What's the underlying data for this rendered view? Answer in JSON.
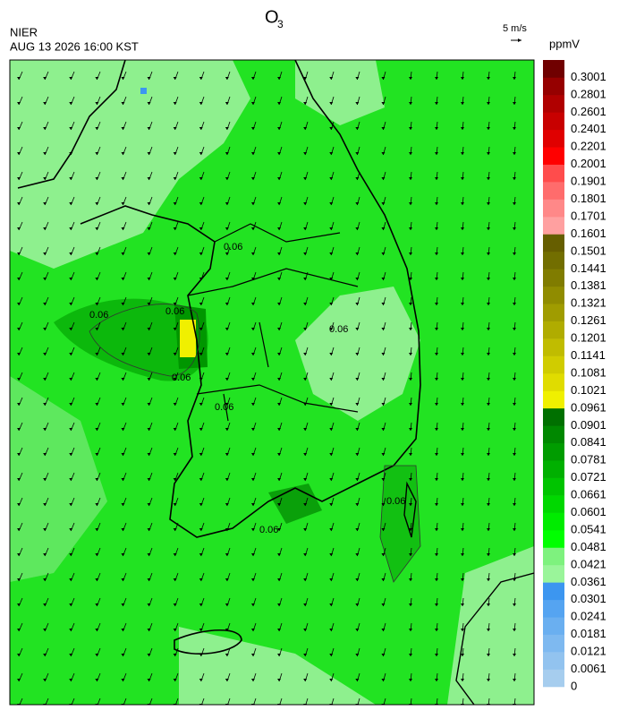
{
  "header": {
    "title": "O",
    "title_subscript": "3",
    "source": "NIER",
    "datetime": "AUG 13 2026 16:00 KST",
    "vector_scale": "5 m/s",
    "unit": "ppmV"
  },
  "colorbar": {
    "levels": [
      0,
      0.0061,
      0.0121,
      0.0181,
      0.0241,
      0.0301,
      0.0361,
      0.0421,
      0.0481,
      0.0541,
      0.0601,
      0.0661,
      0.0721,
      0.0781,
      0.0841,
      0.0901,
      0.0961,
      0.1021,
      0.1081,
      0.1141,
      0.1201,
      0.1261,
      0.1321,
      0.1381,
      0.1441,
      0.1501,
      0.1601,
      0.1701,
      0.1801,
      0.1901,
      0.2001,
      0.2201,
      0.2401,
      0.2601,
      0.2801,
      0.3001
    ],
    "colors": [
      "#a6cdee",
      "#92c3ef",
      "#7eb9f0",
      "#6aaff0",
      "#55a4f1",
      "#3c96f0",
      "#9af59a",
      "#7ef27e",
      "#00ff00",
      "#00ec00",
      "#00d800",
      "#00c400",
      "#00b000",
      "#009c00",
      "#008800",
      "#007000",
      "#f0f000",
      "#e0dc00",
      "#d0cc00",
      "#c0bc00",
      "#b0ac00",
      "#a09c00",
      "#908c00",
      "#807c00",
      "#726e00",
      "#665e00",
      "#ffa0a0",
      "#ff8888",
      "#ff6c6c",
      "#ff4c4c",
      "#ff0000",
      "#e00000",
      "#c80000",
      "#b00000",
      "#960000",
      "#700000"
    ]
  },
  "contour_labels": [
    "0.06",
    "0.06",
    "0.06",
    "0.06",
    "0.06",
    "0.06",
    "0.06",
    "0.06"
  ]
}
